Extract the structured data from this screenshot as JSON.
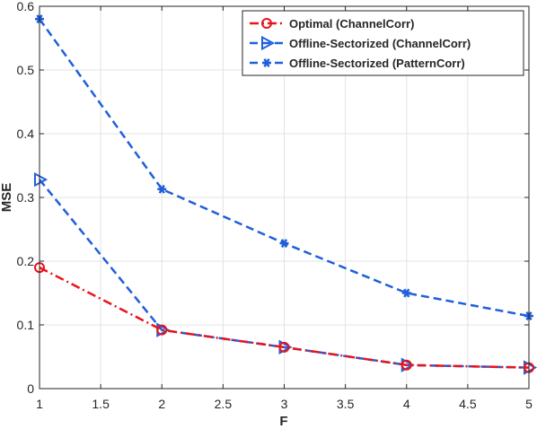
{
  "chart_data": {
    "type": "line",
    "xlabel": "F",
    "ylabel": "MSE",
    "xlim": [
      1,
      5
    ],
    "ylim": [
      0,
      0.6
    ],
    "xticks": [
      "1",
      "1.5",
      "2",
      "2.5",
      "3",
      "3.5",
      "4",
      "4.5",
      "5"
    ],
    "yticks": [
      "0",
      "0.1",
      "0.2",
      "0.3",
      "0.4",
      "0.5",
      "0.6"
    ],
    "grid": true,
    "legend_position": "top-right",
    "x": [
      1,
      2,
      3,
      4,
      5
    ],
    "series": [
      {
        "name": "Optimal (ChannelCorr)",
        "values": [
          0.19,
          0.092,
          0.065,
          0.037,
          0.033
        ],
        "color": "#e8141a",
        "line_style": "dash-dot",
        "marker": "circle"
      },
      {
        "name": "Offline-Sectorized (ChannelCorr)",
        "values": [
          0.328,
          0.092,
          0.065,
          0.037,
          0.033
        ],
        "color": "#1f5fdc",
        "line_style": "dashed",
        "marker": "triangle-right"
      },
      {
        "name": "Offline-Sectorized (PatternCorr)",
        "values": [
          0.58,
          0.313,
          0.228,
          0.15,
          0.114
        ],
        "color": "#1f5fdc",
        "line_style": "dashed",
        "marker": "asterisk"
      }
    ]
  }
}
